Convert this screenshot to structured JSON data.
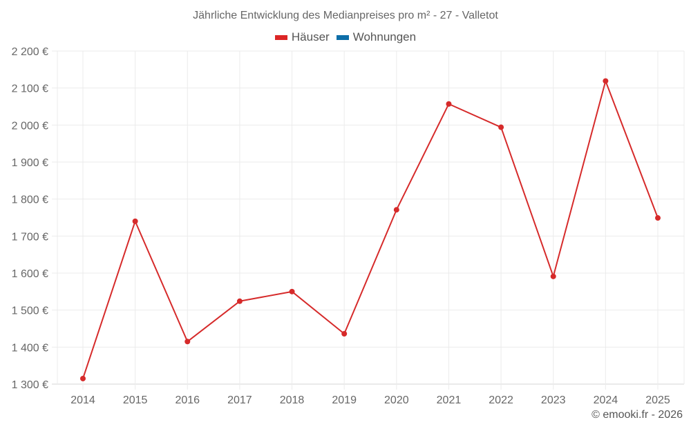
{
  "title": "Jährliche Entwicklung des Medianpreises pro m² - 27 - Valletot",
  "legend": [
    {
      "label": "Häuser",
      "color": "#dc2626"
    },
    {
      "label": "Wohnungen",
      "color": "#0d6ea8"
    }
  ],
  "footer": "© emooki.fr - 2026",
  "colors": {
    "grid": "#ebebeb",
    "axis": "#d6d6d6",
    "series": "#d62a2a"
  },
  "chart_data": {
    "type": "line",
    "title": "Jährliche Entwicklung des Medianpreises pro m² - 27 - Valletot",
    "xlabel": "",
    "ylabel": "",
    "categories": [
      "2014",
      "2015",
      "2016",
      "2017",
      "2018",
      "2019",
      "2020",
      "2021",
      "2022",
      "2023",
      "2024",
      "2025"
    ],
    "series": [
      {
        "name": "Häuser",
        "color": "#dc2626",
        "values": [
          1315,
          1740,
          1415,
          1524,
          1550,
          1436,
          1771,
          2057,
          1994,
          1591,
          2119,
          1749
        ]
      },
      {
        "name": "Wohnungen",
        "color": "#0d6ea8",
        "values": []
      }
    ],
    "ylim": [
      1300,
      2200
    ],
    "yticks": [
      1300,
      1400,
      1500,
      1600,
      1700,
      1800,
      1900,
      2000,
      2100,
      2200
    ],
    "ytick_labels": [
      "1 300 €",
      "1 400 €",
      "1 500 €",
      "1 600 €",
      "1 700 €",
      "1 800 €",
      "1 900 €",
      "2 000 €",
      "2 100 €",
      "2 200 €"
    ],
    "grid": true,
    "legend_position": "top"
  }
}
